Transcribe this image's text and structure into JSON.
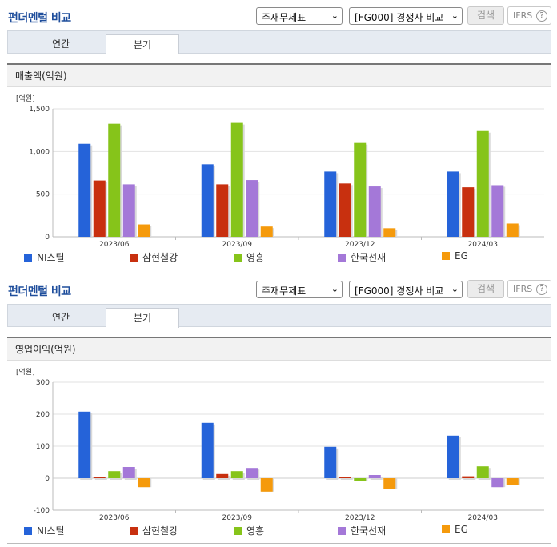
{
  "colors": [
    "#2563d9",
    "#c8300f",
    "#86c41a",
    "#a478d8",
    "#f59a0c"
  ],
  "panels": [
    {
      "title": "펀더멘털 비교",
      "select1": "주재무제표",
      "select2": "[FG000] 경쟁사 비교",
      "search_label": "검색",
      "ifrs_label": "IFRS",
      "ifrs_help": "?",
      "tabs": [
        "연간",
        "분기"
      ],
      "section_label": "매출액(억원)",
      "unit_label": "[억원]",
      "legend": [
        "NI스틸",
        "삼현철강",
        "영흥",
        "한국선재",
        "EG"
      ],
      "chart_data": {
        "type": "bar",
        "categories": [
          "2023/06",
          "2023/09",
          "2023/12",
          "2024/03"
        ],
        "ylim": [
          0,
          1500
        ],
        "yticks": [
          0,
          500,
          1000,
          1500
        ],
        "ytick_labels": [
          "0",
          "500",
          "1,000",
          "1,500"
        ],
        "series": [
          {
            "name": "NI스틸",
            "values": [
              1090,
              850,
              765,
              765
            ]
          },
          {
            "name": "삼현철강",
            "values": [
              660,
              615,
              625,
              580
            ]
          },
          {
            "name": "영흥",
            "values": [
              1325,
              1335,
              1100,
              1240
            ]
          },
          {
            "name": "한국선재",
            "values": [
              615,
              665,
              590,
              605
            ]
          },
          {
            "name": "EG",
            "values": [
              145,
              120,
              100,
              155
            ]
          }
        ]
      }
    },
    {
      "title": "펀더멘털 비교",
      "select1": "주재무제표",
      "select2": "[FG000] 경쟁사 비교",
      "search_label": "검색",
      "ifrs_label": "IFRS",
      "ifrs_help": "?",
      "tabs": [
        "연간",
        "분기"
      ],
      "section_label": "영업이익(억원)",
      "unit_label": "[억원]",
      "legend": [
        "NI스틸",
        "삼현철강",
        "영흥",
        "한국선재",
        "EG"
      ],
      "chart_data": {
        "type": "bar",
        "categories": [
          "2023/06",
          "2023/09",
          "2023/12",
          "2024/03"
        ],
        "ylim": [
          -100,
          300
        ],
        "yticks": [
          -100,
          0,
          100,
          200,
          300
        ],
        "ytick_labels": [
          "-100",
          "0",
          "100",
          "200",
          "300"
        ],
        "series": [
          {
            "name": "NI스틸",
            "values": [
              208,
              173,
              98,
              133
            ]
          },
          {
            "name": "삼현철강",
            "values": [
              5,
              13,
              5,
              6
            ]
          },
          {
            "name": "영흥",
            "values": [
              22,
              22,
              -8,
              37
            ]
          },
          {
            "name": "한국선재",
            "values": [
              35,
              32,
              10,
              -28
            ]
          },
          {
            "name": "EG",
            "values": [
              -28,
              -42,
              -35,
              -22
            ]
          }
        ]
      }
    }
  ]
}
